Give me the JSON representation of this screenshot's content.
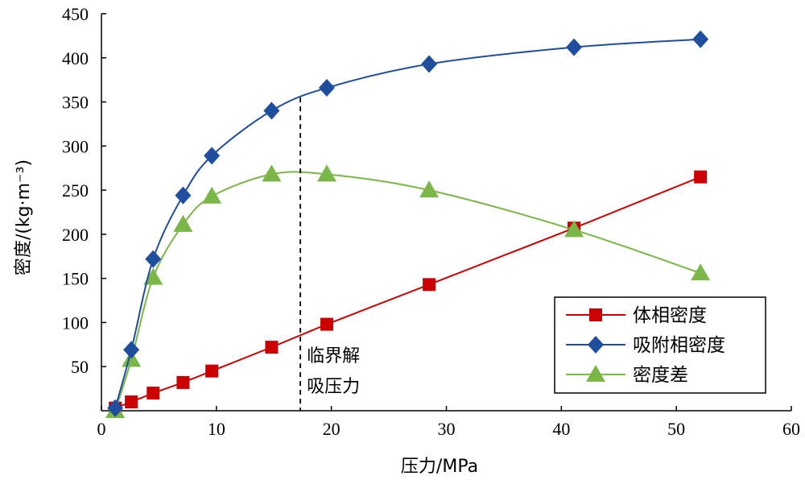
{
  "chart_data": {
    "type": "line",
    "xlabel": "压力/MPa",
    "ylabel": "密度/(kg·m⁻³)",
    "xlim": [
      0,
      60
    ],
    "ylim": [
      0,
      450
    ],
    "x_ticks": [
      0,
      10,
      20,
      30,
      40,
      50,
      60
    ],
    "y_ticks": [
      50,
      100,
      150,
      200,
      250,
      300,
      350,
      400,
      450
    ],
    "grid": false,
    "legend_position": "bottom-right",
    "series": [
      {
        "name": "体相密度",
        "color": "#cc0000",
        "marker": "square",
        "x": [
          1.2,
          2.6,
          4.5,
          7.1,
          9.6,
          14.8,
          19.6,
          28.5,
          41.1,
          52.1
        ],
        "y": [
          3,
          10,
          20,
          32,
          45,
          72,
          98,
          143,
          207,
          265
        ]
      },
      {
        "name": "吸附相密度",
        "color": "#1f4e9e",
        "marker": "diamond",
        "x": [
          1.2,
          2.6,
          4.5,
          7.1,
          9.6,
          14.8,
          19.6,
          28.5,
          41.1,
          52.1
        ],
        "y": [
          3,
          69,
          172,
          244,
          289,
          340,
          366,
          393,
          412,
          421
        ]
      },
      {
        "name": "密度差",
        "color": "#7ab648",
        "marker": "triangle",
        "x": [
          1.2,
          2.6,
          4.5,
          7.1,
          9.6,
          14.8,
          19.6,
          28.5,
          41.1,
          52.1
        ],
        "y": [
          0,
          58,
          151,
          211,
          243,
          268,
          268,
          250,
          205,
          156
        ]
      }
    ],
    "annotation": {
      "text_line1": "临界解",
      "text_line2": "吸压力",
      "x": 17.3
    }
  }
}
